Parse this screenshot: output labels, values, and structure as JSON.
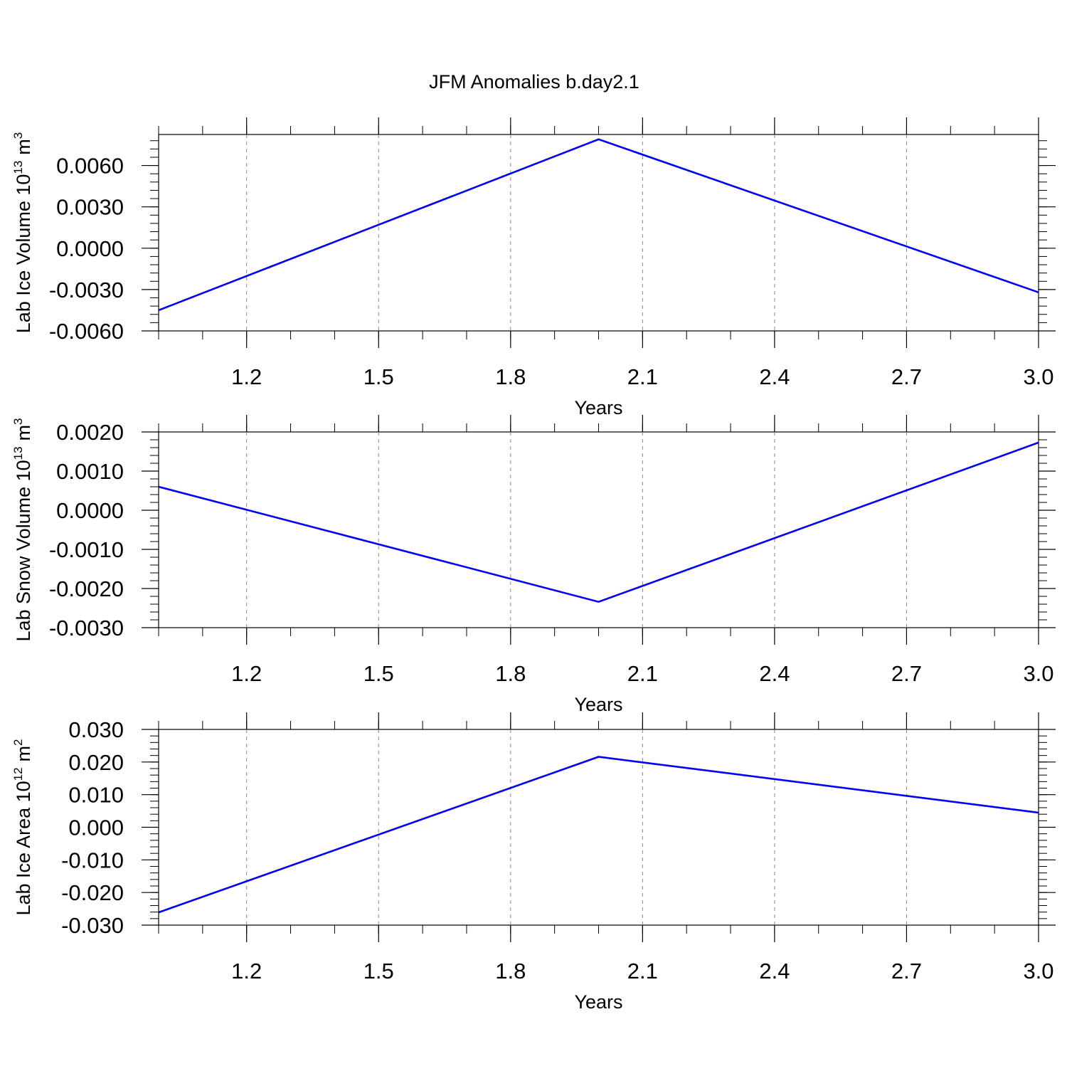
{
  "figure": {
    "title": "JFM Anomalies b.day2.1"
  },
  "colors": {
    "line": "#0000ff",
    "axis": "#000000",
    "grid": "#888888"
  },
  "chart_data": [
    {
      "type": "line",
      "xlabel": "Years",
      "ylabel_text": "Lab Ice Volume 10",
      "ylabel_exp": "13",
      "ylabel_unit": "m",
      "ylabel_unit_exp": "3",
      "xlim": [
        1.0,
        3.0
      ],
      "ylim": [
        -0.006,
        0.00825
      ],
      "x_ticks": [
        1.2,
        1.5,
        1.8,
        2.1,
        2.4,
        2.7,
        3.0
      ],
      "x_tick_labels": [
        "1.2",
        "1.5",
        "1.8",
        "2.1",
        "2.4",
        "2.7",
        "3.0"
      ],
      "y_ticks": [
        0.006,
        0.003,
        0.0,
        -0.003,
        -0.006
      ],
      "y_tick_labels": [
        "0.0060",
        "0.0030",
        "0.0000",
        "-0.0030",
        "-0.0060"
      ],
      "y_minor_step": 0.0006,
      "grid": true,
      "series": [
        {
          "x": [
            1.0,
            2.0,
            3.0
          ],
          "y": [
            -0.0045,
            0.0079,
            -0.0032
          ]
        }
      ]
    },
    {
      "type": "line",
      "xlabel": "Years",
      "ylabel_text": "Lab Snow Volume 10",
      "ylabel_exp": "13",
      "ylabel_unit": "m",
      "ylabel_unit_exp": "3",
      "xlim": [
        1.0,
        3.0
      ],
      "ylim": [
        -0.003,
        0.002
      ],
      "x_ticks": [
        1.2,
        1.5,
        1.8,
        2.1,
        2.4,
        2.7,
        3.0
      ],
      "x_tick_labels": [
        "1.2",
        "1.5",
        "1.8",
        "2.1",
        "2.4",
        "2.7",
        "3.0"
      ],
      "y_ticks": [
        0.002,
        0.001,
        0.0,
        -0.001,
        -0.002,
        -0.003
      ],
      "y_tick_labels": [
        "0.0020",
        "0.0010",
        "0.0000",
        "-0.0010",
        "-0.0020",
        "-0.0030"
      ],
      "y_minor_step": 0.0002,
      "grid": true,
      "series": [
        {
          "x": [
            1.0,
            2.0,
            3.0
          ],
          "y": [
            0.0006,
            -0.00234,
            0.00173
          ]
        }
      ]
    },
    {
      "type": "line",
      "xlabel": "Years",
      "ylabel_text": "Lab Ice Area 10",
      "ylabel_exp": "12",
      "ylabel_unit": "m",
      "ylabel_unit_exp": "2",
      "xlim": [
        1.0,
        3.0
      ],
      "ylim": [
        -0.03,
        0.03
      ],
      "x_ticks": [
        1.2,
        1.5,
        1.8,
        2.1,
        2.4,
        2.7,
        3.0
      ],
      "x_tick_labels": [
        "1.2",
        "1.5",
        "1.8",
        "2.1",
        "2.4",
        "2.7",
        "3.0"
      ],
      "y_ticks": [
        0.03,
        0.02,
        0.01,
        0.0,
        -0.01,
        -0.02,
        -0.03
      ],
      "y_tick_labels": [
        "0.030",
        "0.020",
        "0.010",
        "0.000",
        "-0.010",
        "-0.020",
        "-0.030"
      ],
      "y_minor_step": 0.002,
      "grid": true,
      "series": [
        {
          "x": [
            1.0,
            2.0,
            3.0
          ],
          "y": [
            -0.0261,
            0.0216,
            0.0045
          ]
        }
      ]
    }
  ]
}
